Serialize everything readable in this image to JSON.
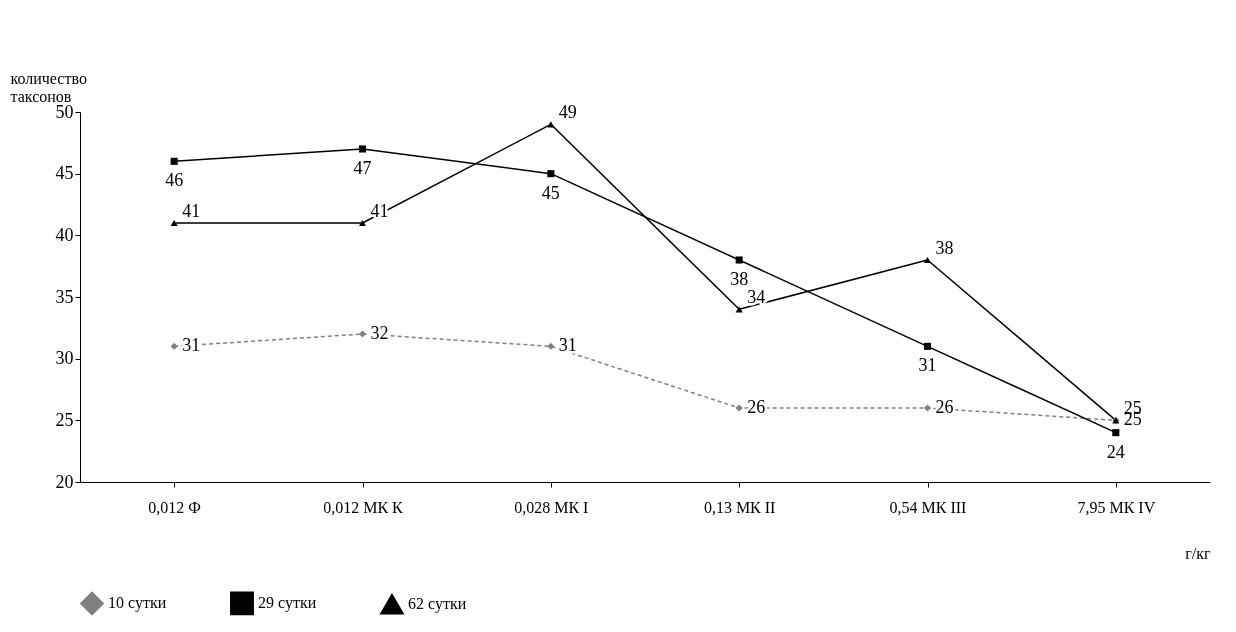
{
  "chart_data": {
    "type": "line",
    "ylabel": "количество таксонов",
    "xlabel": "г/кг",
    "categories": [
      "0,012 Ф",
      "0,012 МК К",
      "0,028 МК I",
      "0,13 МК II",
      "0,54 МК III",
      "7,95 МК IV"
    ],
    "series": [
      {
        "name": "10 сутки",
        "color": "#808080",
        "marker": "diamond",
        "line_style": "dashed",
        "values": [
          31,
          32,
          31,
          26,
          26,
          25
        ]
      },
      {
        "name": "29 сутки",
        "color": "#000000",
        "marker": "square",
        "line_style": "solid",
        "values": [
          46,
          47,
          45,
          38,
          31,
          24
        ]
      },
      {
        "name": "62 сутки",
        "color": "#000000",
        "marker": "triangle",
        "line_style": "solid",
        "values": [
          41,
          41,
          49,
          34,
          38,
          25
        ]
      }
    ],
    "ylim": [
      20,
      50
    ],
    "yticks": [
      20,
      25,
      30,
      35,
      40,
      45,
      50
    ],
    "grid": false,
    "legend": "bottom",
    "data_labels": true
  }
}
